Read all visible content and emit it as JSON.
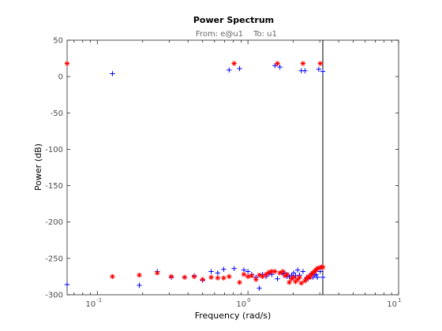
{
  "chart_data": {
    "type": "scatter",
    "title": "Power Spectrum",
    "subtitle_from": "From: e@u1",
    "subtitle_to": "To: u1",
    "xlabel": "Frequency  (rad/s)",
    "ylabel": "Power (dB)",
    "xscale": "log",
    "xlim": [
      0.063,
      10
    ],
    "ylim": [
      -300,
      50
    ],
    "x_ticks": [
      {
        "value": 0.1,
        "base": "10",
        "exp": "-1"
      },
      {
        "value": 1,
        "base": "10",
        "exp": "0"
      },
      {
        "value": 10,
        "base": "10",
        "exp": "1"
      }
    ],
    "y_ticks": [
      50,
      0,
      -50,
      -100,
      -150,
      -200,
      -250,
      -300
    ],
    "vline_x": 3.14,
    "colors": {
      "series_plus": "#0000ff",
      "series_star": "#ff0000",
      "vline": "#000000",
      "axis": "#262626"
    },
    "series": [
      {
        "marker": "plus",
        "points": [
          [
            0.063,
            -286
          ],
          [
            0.126,
            4
          ],
          [
            0.19,
            -287
          ],
          [
            0.25,
            -268
          ],
          [
            0.31,
            -276
          ],
          [
            0.38,
            -276
          ],
          [
            0.44,
            -274
          ],
          [
            0.5,
            -280
          ],
          [
            0.57,
            -268
          ],
          [
            0.63,
            -270
          ],
          [
            0.69,
            -265
          ],
          [
            0.75,
            9
          ],
          [
            0.81,
            -264
          ],
          [
            0.88,
            11
          ],
          [
            0.94,
            -266
          ],
          [
            1.0,
            -268
          ],
          [
            1.06,
            -272
          ],
          [
            1.13,
            -276
          ],
          [
            1.19,
            -291
          ],
          [
            1.25,
            -272
          ],
          [
            1.32,
            -275
          ],
          [
            1.38,
            -271
          ],
          [
            1.44,
            -272
          ],
          [
            1.51,
            15
          ],
          [
            1.57,
            -278
          ],
          [
            1.63,
            13
          ],
          [
            1.7,
            -271
          ],
          [
            1.76,
            -270
          ],
          [
            1.82,
            -275
          ],
          [
            1.88,
            -275
          ],
          [
            1.95,
            -273
          ],
          [
            2.01,
            -270
          ],
          [
            2.07,
            -274
          ],
          [
            2.14,
            -266
          ],
          [
            2.2,
            -273
          ],
          [
            2.26,
            8
          ],
          [
            2.32,
            -268
          ],
          [
            2.39,
            8
          ],
          [
            2.45,
            -277
          ],
          [
            2.51,
            -278
          ],
          [
            2.58,
            -276
          ],
          [
            2.64,
            -271
          ],
          [
            2.7,
            -276
          ],
          [
            2.76,
            -273
          ],
          [
            2.83,
            -272
          ],
          [
            2.89,
            -276
          ],
          [
            2.95,
            10
          ],
          [
            3.02,
            -268
          ],
          [
            3.08,
            -262
          ],
          [
            3.14,
            7
          ],
          [
            3.14,
            -276
          ]
        ]
      },
      {
        "marker": "star",
        "points": [
          [
            0.063,
            18
          ],
          [
            0.126,
            -275
          ],
          [
            0.19,
            -273
          ],
          [
            0.25,
            -270
          ],
          [
            0.31,
            -275
          ],
          [
            0.38,
            -276
          ],
          [
            0.44,
            -275
          ],
          [
            0.5,
            -279
          ],
          [
            0.57,
            -276
          ],
          [
            0.63,
            -277
          ],
          [
            0.69,
            -277
          ],
          [
            0.75,
            -275
          ],
          [
            0.81,
            18
          ],
          [
            0.88,
            -283
          ],
          [
            0.94,
            -272
          ],
          [
            1.0,
            -275
          ],
          [
            1.06,
            -274
          ],
          [
            1.13,
            -279
          ],
          [
            1.19,
            -273
          ],
          [
            1.25,
            -275
          ],
          [
            1.32,
            -272
          ],
          [
            1.38,
            -269
          ],
          [
            1.44,
            -268
          ],
          [
            1.51,
            -268
          ],
          [
            1.57,
            18
          ],
          [
            1.63,
            -270
          ],
          [
            1.7,
            -268
          ],
          [
            1.76,
            -274
          ],
          [
            1.82,
            -272
          ],
          [
            1.88,
            -283
          ],
          [
            1.95,
            -278
          ],
          [
            2.01,
            -276
          ],
          [
            2.07,
            -282
          ],
          [
            2.14,
            -279
          ],
          [
            2.2,
            -276
          ],
          [
            2.26,
            -284
          ],
          [
            2.32,
            18
          ],
          [
            2.39,
            -281
          ],
          [
            2.45,
            -278
          ],
          [
            2.51,
            -275
          ],
          [
            2.58,
            -276
          ],
          [
            2.64,
            -272
          ],
          [
            2.7,
            -270
          ],
          [
            2.76,
            -268
          ],
          [
            2.83,
            -266
          ],
          [
            2.89,
            -264
          ],
          [
            2.95,
            -263
          ],
          [
            3.02,
            18
          ],
          [
            3.08,
            -262
          ],
          [
            3.14,
            -262
          ]
        ]
      }
    ]
  }
}
